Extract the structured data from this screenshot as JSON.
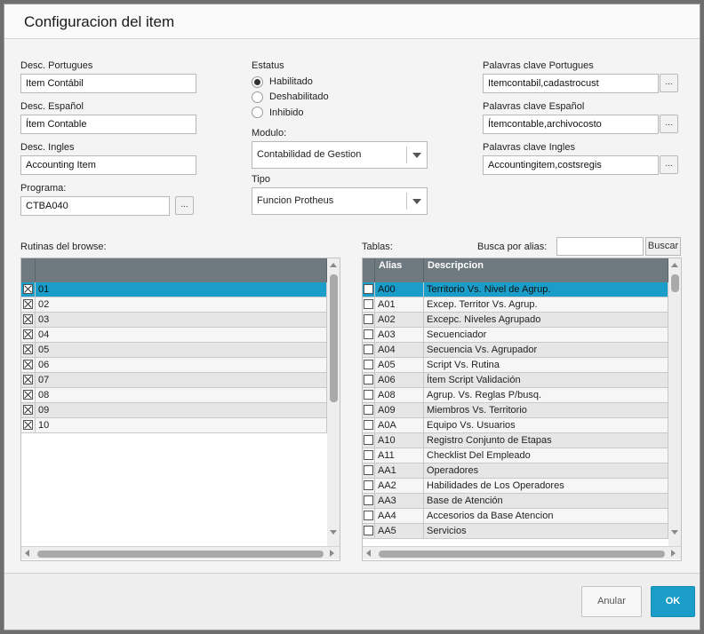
{
  "dialog": {
    "title": "Configuracion del item"
  },
  "left_fields": {
    "desc_portugues_label": "Desc. Portugues",
    "desc_portugues_value": "Item Contábil",
    "desc_espanol_label": "Desc. Español",
    "desc_espanol_value": "Ítem Contable",
    "desc_ingles_label": "Desc. Ingles",
    "desc_ingles_value": "Accounting Item",
    "programa_label": "Programa:",
    "programa_value": "CTBA040",
    "lookup_label": "..."
  },
  "status": {
    "label": "Estatus",
    "options": [
      "Habilitado",
      "Deshabilitado",
      "Inhibido"
    ],
    "selected": "Habilitado"
  },
  "modulo": {
    "label": "Modulo:",
    "value": "Contabilidad de Gestion"
  },
  "tipo": {
    "label": "Tipo",
    "value": "Funcion Protheus"
  },
  "keywords": {
    "portugues_label": "Palavras clave Portugues",
    "portugues_value": "Itemcontabil,cadastrocust",
    "espanol_label": "Palavras clave Español",
    "espanol_value": "Ítemcontable,archivocosto",
    "ingles_label": "Palavras clave Ingles",
    "ingles_value": "Accountingitem,costsregis"
  },
  "routines": {
    "label": "Rutinas del browse:",
    "rows": [
      {
        "checked": true,
        "value": "01"
      },
      {
        "checked": true,
        "value": "02"
      },
      {
        "checked": true,
        "value": "03"
      },
      {
        "checked": true,
        "value": "04"
      },
      {
        "checked": true,
        "value": "05"
      },
      {
        "checked": true,
        "value": "06"
      },
      {
        "checked": true,
        "value": "07"
      },
      {
        "checked": true,
        "value": "08"
      },
      {
        "checked": true,
        "value": "09"
      },
      {
        "checked": true,
        "value": "10"
      }
    ],
    "selected_index": 0
  },
  "tables": {
    "label": "Tablas:",
    "search_label": "Busca por alias:",
    "search_value": "",
    "search_button": "Buscar",
    "columns": [
      "Alias",
      "Descripcion"
    ],
    "rows": [
      {
        "alias": "A00",
        "desc": "Territorio Vs. Nivel de Agrup."
      },
      {
        "alias": "A01",
        "desc": "Excep. Territor Vs. Agrup."
      },
      {
        "alias": "A02",
        "desc": "Excepc. Niveles Agrupado"
      },
      {
        "alias": "A03",
        "desc": "Secuenciador"
      },
      {
        "alias": "A04",
        "desc": "Secuencia Vs. Agrupador"
      },
      {
        "alias": "A05",
        "desc": "Script Vs. Rutina"
      },
      {
        "alias": "A06",
        "desc": "Ítem Script Validación"
      },
      {
        "alias": "A08",
        "desc": "Agrup. Vs. Reglas P/busq."
      },
      {
        "alias": "A09",
        "desc": "Miembros Vs. Territorio"
      },
      {
        "alias": "A0A",
        "desc": "Equipo Vs. Usuarios"
      },
      {
        "alias": "A10",
        "desc": "Registro Conjunto de Etapas"
      },
      {
        "alias": "A11",
        "desc": "Checklist Del Empleado"
      },
      {
        "alias": "AA1",
        "desc": "Operadores"
      },
      {
        "alias": "AA2",
        "desc": "Habilidades de Los Operadores"
      },
      {
        "alias": "AA3",
        "desc": "Base de Atención"
      },
      {
        "alias": "AA4",
        "desc": "Accesorios da Base Atencion"
      },
      {
        "alias": "AA5",
        "desc": "Servicios"
      }
    ],
    "selected_index": 0
  },
  "footer": {
    "cancel_label": "Anular",
    "ok_label": "OK"
  },
  "colors": {
    "accent": "#1a9ec9",
    "grid_header": "#6e7980"
  }
}
